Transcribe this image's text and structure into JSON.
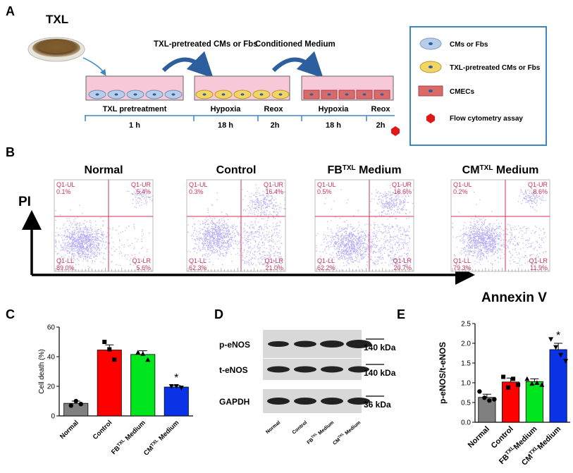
{
  "panelA": {
    "letter": "A",
    "txl_label": "TXL",
    "arrow1_label": "TXL-pretreated CMs or Fbs",
    "arrow2_label": "Conditioned Medium",
    "stage_labels": [
      "TXL pretreatment",
      "Hypoxia",
      "Reox",
      "Hypoxia",
      "Reox"
    ],
    "time_labels": [
      "1 h",
      "18 h",
      "2h",
      "18 h",
      "2h"
    ],
    "legend": [
      {
        "label": "CMs or Fbs",
        "icon": "blue-cell-icon",
        "color": "#b8cdea"
      },
      {
        "label": "TXL-pretreated CMs or Fbs",
        "icon": "yellow-cell-icon",
        "color": "#f3d565"
      },
      {
        "label": "CMECs",
        "icon": "red-cell-icon",
        "color": "#d96a6a"
      },
      {
        "label": "Flow cytometry assay",
        "icon": "hexagon-icon",
        "color": "#e01818"
      }
    ],
    "colors": {
      "well": "#f7c9d8",
      "legend_border": "#3b87c4",
      "arrow": "#2d5e9e"
    }
  },
  "panelB": {
    "letter": "B",
    "y_axis_label": "PI",
    "x_axis_label": "Annexin V",
    "plots": [
      {
        "title": "Normal",
        "sup": "",
        "title_after": "",
        "UL": "Q1-UL",
        "UL_val": "0.1%",
        "UR": "Q1-UR",
        "UR_val": "5.4%",
        "LL": "Q1-LL",
        "LL_val": "89.0%",
        "LR": "Q1-LR",
        "LR_val": "5.6%"
      },
      {
        "title": "Control",
        "sup": "",
        "title_after": "",
        "UL": "Q1-UL",
        "UL_val": "0.3%",
        "UR": "Q1-UR",
        "UR_val": "16.4%",
        "LL": "Q1-LL",
        "LL_val": "62.3%",
        "LR": "Q1-LR",
        "LR_val": "21.0%"
      },
      {
        "title": "FB",
        "sup": "TXL",
        "title_after": " Medium",
        "UL": "Q1-UL",
        "UL_val": "0.5%",
        "UR": "Q1-UR",
        "UR_val": "16.6%",
        "LL": "Q1-LL",
        "LL_val": "62.2%",
        "LR": "Q1-LR",
        "LR_val": "20.7%"
      },
      {
        "title": "CM",
        "sup": "TXL",
        "title_after": " Medium",
        "UL": "Q1-UL",
        "UL_val": "0.2%",
        "UR": "Q1-UR",
        "UR_val": "8.6%",
        "LL": "Q1-LL",
        "LL_val": "79.3%",
        "LR": "Q1-LR",
        "LR_val": "11.9%"
      }
    ]
  },
  "panelD": {
    "letter": "D",
    "bands": [
      "p-eNOS",
      "t-eNOS",
      "GAPDH"
    ],
    "sizes": [
      "140 kDa",
      "140 kDa",
      "36 kDa"
    ],
    "lanes": [
      {
        "main": "Normal",
        "sup": "",
        "rest": ""
      },
      {
        "main": "Control",
        "sup": "",
        "rest": ""
      },
      {
        "main": "FB",
        "sup": "TXL",
        "rest": " Medium"
      },
      {
        "main": "CM",
        "sup": "TXL",
        "rest": " Medium"
      }
    ]
  },
  "chart_data": [
    {
      "panel": "C",
      "type": "bar",
      "ylabel": "Cell death (%)",
      "ylim": [
        0,
        60
      ],
      "yticks": [
        "0",
        "20",
        "40",
        "60"
      ],
      "categories": [
        "Normal",
        "Control",
        "FB",
        "CM"
      ],
      "category_sup": [
        "",
        "",
        "TXL",
        "TXL"
      ],
      "category_suffix": [
        "",
        "",
        " Medium",
        " Medium"
      ],
      "values": [
        8.5,
        44.5,
        41.5,
        19.5
      ],
      "errors": [
        1.5,
        3.5,
        2.5,
        1.0
      ],
      "colors": [
        "#808080",
        "#ff0000",
        "#00e61e",
        "#0a32e6"
      ],
      "points": [
        [
          7.0,
          10.0,
          8.0
        ],
        [
          50.0,
          45.0,
          38.0
        ],
        [
          43.0,
          42.0,
          38.0
        ],
        [
          20.0,
          20.0,
          19.0
        ]
      ],
      "markers": [
        "circle",
        "square",
        "triangle",
        "triangle-down"
      ],
      "annotations": [
        "",
        "",
        "",
        "*"
      ]
    },
    {
      "panel": "E",
      "type": "bar",
      "ylabel": "p-eNOS/t-eNOS",
      "ylim": [
        0,
        2.5
      ],
      "yticks": [
        "0.0",
        "0.5",
        "1.0",
        "1.5",
        "2.0",
        "2.5"
      ],
      "categories": [
        "Normal",
        "Control",
        "FB",
        "CM"
      ],
      "category_sup": [
        "",
        "",
        "TXL",
        "TXL"
      ],
      "category_suffix": [
        "",
        "",
        "Medium",
        "Medium"
      ],
      "values": [
        0.63,
        1.02,
        1.03,
        1.84
      ],
      "errors": [
        0.08,
        0.1,
        0.07,
        0.16
      ],
      "colors": [
        "#808080",
        "#ff0000",
        "#00e61e",
        "#0a32e6"
      ],
      "points": [
        [
          0.78,
          0.62,
          0.55,
          0.58
        ],
        [
          1.15,
          0.88,
          1.1,
          0.95
        ],
        [
          1.1,
          0.98,
          1.0,
          0.95
        ],
        [
          2.1,
          1.9,
          1.7,
          1.55
        ]
      ],
      "markers": [
        "circle",
        "square",
        "triangle",
        "triangle-down"
      ],
      "annotations": [
        "",
        "",
        "",
        "*"
      ]
    }
  ]
}
